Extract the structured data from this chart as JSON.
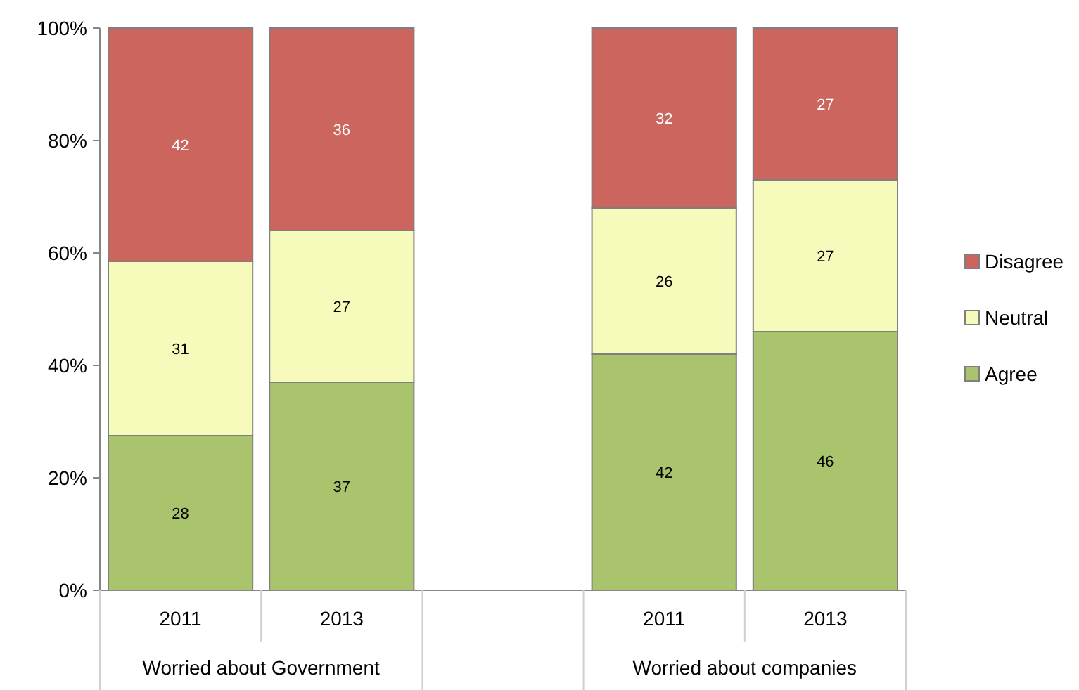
{
  "chart_data": {
    "type": "bar",
    "stacked": true,
    "categories": [
      "2011",
      "2013",
      null,
      "2011",
      "2013"
    ],
    "series": [
      {
        "name": "Agree",
        "color": "#a9c46c",
        "values": [
          27.5,
          37,
          null,
          42,
          46
        ],
        "value_labels": [
          "28",
          "37",
          null,
          "42",
          "46"
        ]
      },
      {
        "name": "Neutral",
        "color": "#f6fabb",
        "values": [
          31,
          27,
          null,
          26,
          27
        ],
        "value_labels": [
          "31",
          "27",
          null,
          "26",
          "27"
        ]
      },
      {
        "name": "Disagree",
        "color": "#cd655f",
        "values": [
          41.5,
          36,
          null,
          32,
          27
        ],
        "value_labels": [
          "42",
          "36",
          null,
          "32",
          "27"
        ]
      }
    ],
    "ylim": [
      0,
      100
    ],
    "yticks": [
      {
        "value": 0,
        "label": "0%"
      },
      {
        "value": 20,
        "label": "20%"
      },
      {
        "value": 40,
        "label": "40%"
      },
      {
        "value": 60,
        "label": "60%"
      },
      {
        "value": 80,
        "label": "80%"
      },
      {
        "value": 100,
        "label": "100%"
      }
    ],
    "legend": "right",
    "annotations": [
      "Worried about Government",
      "Worried about companies"
    ]
  }
}
